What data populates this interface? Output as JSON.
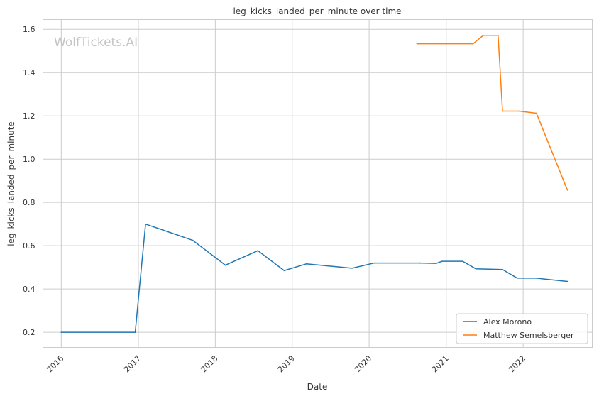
{
  "chart_data": {
    "type": "line",
    "title": "leg_kicks_landed_per_minute over time",
    "xlabel": "Date",
    "ylabel": "leg_kicks_landed_per_minute",
    "watermark": "WolfTickets.AI",
    "xlim": [
      "2015-10-06",
      "2022-11-25"
    ],
    "ylim": [
      0.13,
      1.645
    ],
    "x_ticks": [
      "2016-01-01",
      "2017-01-01",
      "2018-01-01",
      "2019-01-01",
      "2020-01-01",
      "2021-01-01",
      "2022-01-01"
    ],
    "x_tick_labels": [
      "2016",
      "2017",
      "2018",
      "2019",
      "2020",
      "2021",
      "2022"
    ],
    "y_ticks": [
      0.2,
      0.4,
      0.6,
      0.8,
      1.0,
      1.2,
      1.4,
      1.6
    ],
    "y_tick_labels": [
      "0.2",
      "0.4",
      "0.6",
      "0.8",
      "1.0",
      "1.2",
      "1.4",
      "1.6"
    ],
    "grid": true,
    "legend_position": "bottom-right",
    "series": [
      {
        "name": "Alex Morono",
        "color": "#1f77b4",
        "points": [
          {
            "x": "2016-01-01",
            "y": 0.2
          },
          {
            "x": "2016-12-17",
            "y": 0.2
          },
          {
            "x": "2017-02-04",
            "y": 0.7
          },
          {
            "x": "2017-09-16",
            "y": 0.625
          },
          {
            "x": "2018-02-18",
            "y": 0.51
          },
          {
            "x": "2018-07-22",
            "y": 0.577
          },
          {
            "x": "2018-11-24",
            "y": 0.485
          },
          {
            "x": "2019-03-09",
            "y": 0.516
          },
          {
            "x": "2019-10-12",
            "y": 0.496
          },
          {
            "x": "2020-01-25",
            "y": 0.52
          },
          {
            "x": "2020-08-29",
            "y": 0.52
          },
          {
            "x": "2020-11-14",
            "y": 0.518
          },
          {
            "x": "2020-12-12",
            "y": 0.528
          },
          {
            "x": "2021-03-20",
            "y": 0.528
          },
          {
            "x": "2021-05-22",
            "y": 0.493
          },
          {
            "x": "2021-09-25",
            "y": 0.49
          },
          {
            "x": "2021-12-04",
            "y": 0.45
          },
          {
            "x": "2022-03-05",
            "y": 0.45
          },
          {
            "x": "2022-07-30",
            "y": 0.435
          }
        ]
      },
      {
        "name": "Matthew Semelsberger",
        "color": "#ff7f0e",
        "points": [
          {
            "x": "2020-08-15",
            "y": 1.533
          },
          {
            "x": "2021-05-08",
            "y": 1.533
          },
          {
            "x": "2021-06-26",
            "y": 1.572
          },
          {
            "x": "2021-09-04",
            "y": 1.572
          },
          {
            "x": "2021-09-25",
            "y": 1.222
          },
          {
            "x": "2021-12-11",
            "y": 1.222
          },
          {
            "x": "2022-03-05",
            "y": 1.212
          },
          {
            "x": "2022-07-30",
            "y": 0.857
          }
        ]
      }
    ]
  }
}
